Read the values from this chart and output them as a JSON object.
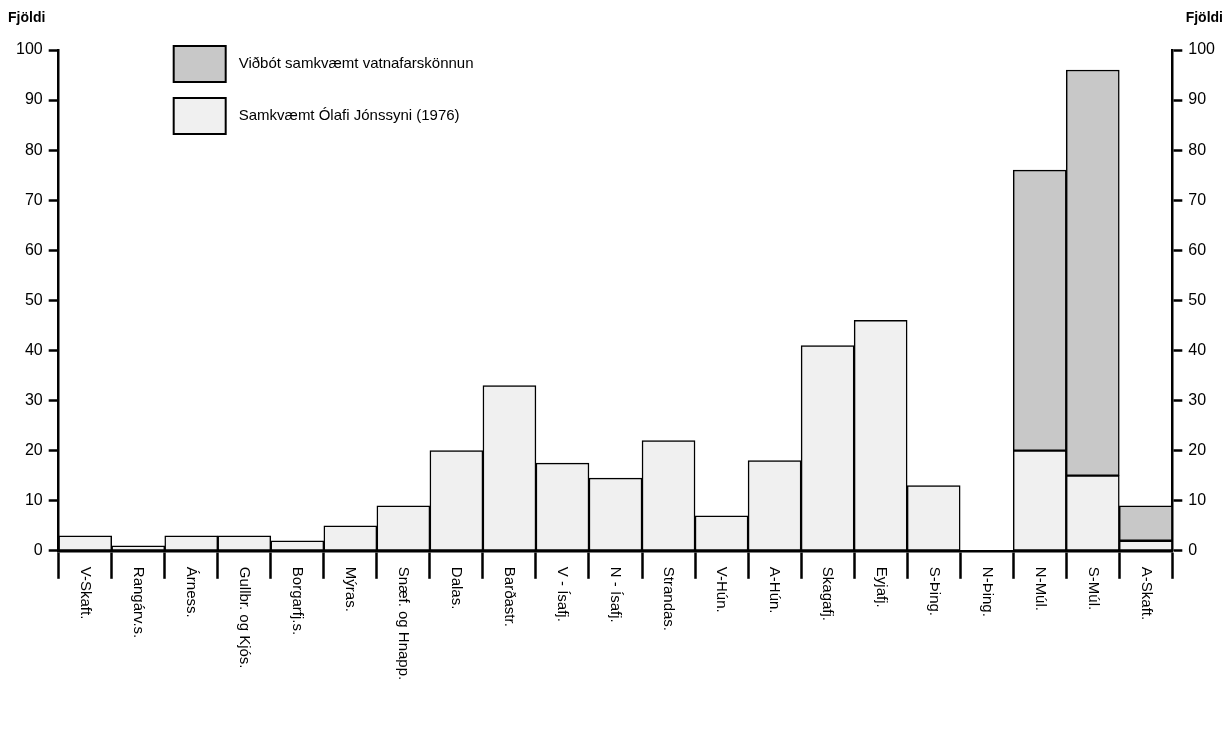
{
  "chart_data": {
    "type": "bar",
    "stacked": true,
    "ylabel": "Fjöldi",
    "y2label": "Fjöldi",
    "categories": [
      "V-Skaft.",
      "Rangárv.s.",
      "Árness.",
      "Gullbr. og Kjós.",
      "Borgarfj.s.",
      "Mýras.",
      "Snæf. og Hnapp.",
      "Dalas.",
      "Barðastr.",
      "V - Ísafj.",
      "N - Ísafj.",
      "Strandas.",
      "V-Hún.",
      "A-Hún.",
      "Skagafj.",
      "Eyjafj.",
      "S-Þing.",
      "N-Þing.",
      "N-Múl.",
      "S-Múl.",
      "A-Skaft."
    ],
    "series": [
      {
        "name": "Samkvæmt Ólafi Jónssyni (1976)",
        "color": "#f0f0f0",
        "values": [
          3,
          1,
          3,
          3,
          2,
          5,
          9,
          20,
          33,
          17.5,
          14.5,
          22,
          7,
          18,
          41,
          46,
          13,
          0,
          20,
          15,
          2
        ]
      },
      {
        "name": "Viðbót samkvæmt vatnafarskönnun",
        "color": "#c8c8c8",
        "values": [
          0,
          0,
          0,
          0,
          0,
          0,
          0,
          0,
          0,
          0,
          0,
          0,
          0,
          0,
          0,
          0,
          0,
          0,
          56,
          81,
          7
        ]
      }
    ],
    "ylim": [
      0,
      100
    ],
    "yticks": [
      0,
      10,
      20,
      30,
      40,
      50,
      60,
      70,
      80,
      90,
      100
    ],
    "y2lim": [
      0,
      100
    ],
    "y2ticks": [
      0,
      10,
      20,
      30,
      40,
      50,
      60,
      70,
      80,
      90,
      100
    ],
    "legend": "top left",
    "grid": false
  }
}
